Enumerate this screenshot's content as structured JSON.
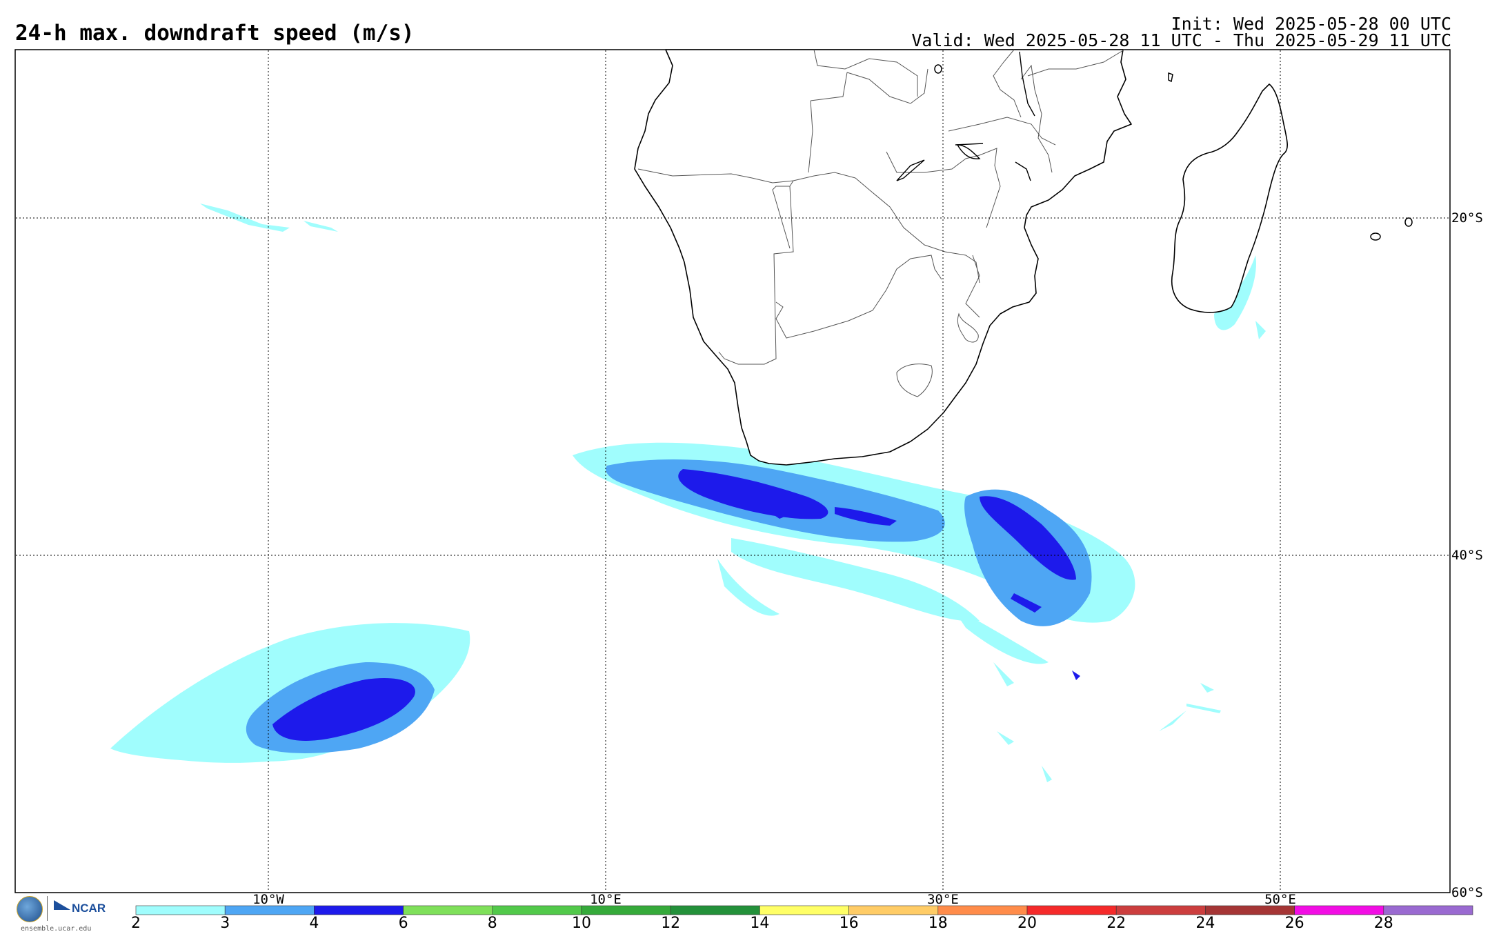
{
  "header": {
    "title": "24-h max. downdraft speed (m/s)",
    "init": "Init: Wed 2025-05-28 00 UTC",
    "valid": "Valid: Wed 2025-05-28 11 UTC - Thu 2025-05-29 11 UTC"
  },
  "map": {
    "lon_labels": [
      "10°W",
      "10°E",
      "30°E",
      "50°E"
    ],
    "lat_labels": [
      "20°S",
      "40°S",
      "60°S"
    ],
    "land_fill": "#ffffff",
    "coast_color": "#000000",
    "border_color": "#555555"
  },
  "colorbar": {
    "ticks": [
      "2",
      "3",
      "4",
      "6",
      "8",
      "10",
      "12",
      "14",
      "16",
      "18",
      "20",
      "22",
      "24",
      "26",
      "28"
    ],
    "colors": [
      "#a0fdfd",
      "#4ea6f4",
      "#1d1aeb",
      "#7fe05a",
      "#52c94a",
      "#35aa3a",
      "#23913a",
      "#ffff66",
      "#ffcc66",
      "#ff8c4a",
      "#f52a2a",
      "#cc3e3e",
      "#a53535",
      "#f20de4",
      "#9a6ad1"
    ]
  },
  "logo": {
    "nsf_icon": "nsf-seal-icon",
    "ncar_icon": "ncar-logo-icon",
    "ncar_text": "NCAR",
    "site": "ensemble.ucar.edu"
  }
}
